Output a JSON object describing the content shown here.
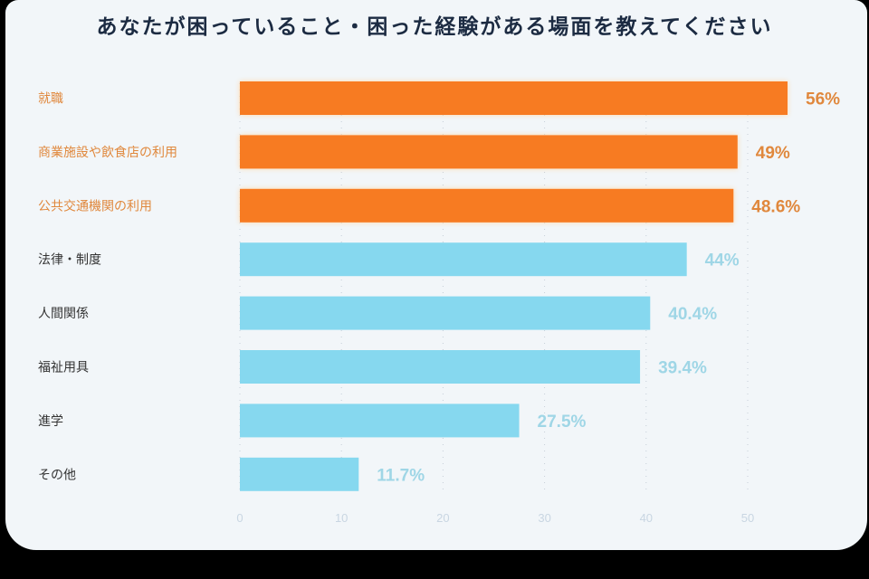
{
  "chart_data": {
    "type": "bar",
    "orientation": "horizontal",
    "title": "あなたが困っていること・困った経験がある場面を教えてください",
    "categories": [
      "就職",
      "商業施設や飲食店の利用",
      "公共交通機関の利用",
      "法律・制度",
      "人間関係",
      "福祉用具",
      "進学",
      "その他"
    ],
    "values": [
      56,
      49,
      48.6,
      44,
      40.4,
      39.4,
      27.5,
      11.7
    ],
    "value_labels": [
      "56%",
      "49%",
      "48.6%",
      "44%",
      "40.4%",
      "39.4%",
      "27.5%",
      "11.7%"
    ],
    "highlighted": [
      true,
      true,
      true,
      false,
      false,
      false,
      false,
      false
    ],
    "xlim": [
      0,
      55
    ],
    "x_ticks": [
      "0",
      "10",
      "20",
      "30",
      "40",
      "50"
    ],
    "grid": "vertical dotted",
    "xlabel": "",
    "ylabel": "",
    "colors": {
      "highlight_bar": "#f77b22",
      "highlight_text": "#e0883d",
      "bar": "#86d8ef",
      "value_text": "#9fd6e6",
      "label_text": "#333333",
      "tick_text": "#c9d6e2",
      "title": "#1c2b42"
    }
  }
}
